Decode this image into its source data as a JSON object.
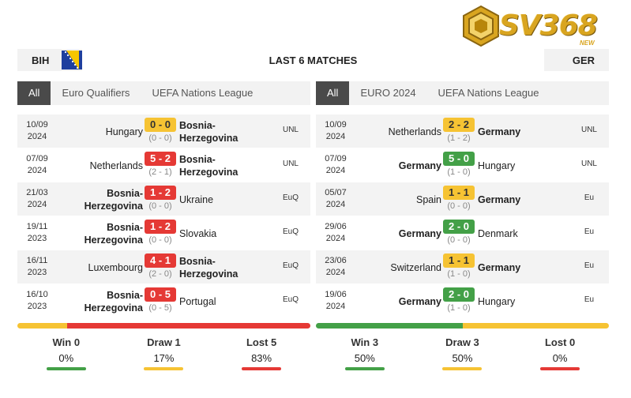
{
  "logo": {
    "text": "SV368",
    "sub": "NEW"
  },
  "header": {
    "left_team": "BIH",
    "right_team": "GER",
    "title": "LAST 6 MATCHES"
  },
  "left": {
    "tabs": [
      "All",
      "Euro Qualifiers",
      "UEFA Nations League"
    ],
    "matches": [
      {
        "date1": "10/09",
        "date2": "2024",
        "home": "Hungary",
        "away": "Bosnia-Herzegovina",
        "score": "0 - 0",
        "ht": "(0 - 0)",
        "comp": "UNL",
        "result": "draw",
        "bold": "away"
      },
      {
        "date1": "07/09",
        "date2": "2024",
        "home": "Netherlands",
        "away": "Bosnia-Herzegovina",
        "score": "5 - 2",
        "ht": "(2 - 1)",
        "comp": "UNL",
        "result": "loss",
        "bold": "away"
      },
      {
        "date1": "21/03",
        "date2": "2024",
        "home": "Bosnia-Herzegovina",
        "away": "Ukraine",
        "score": "1 - 2",
        "ht": "(0 - 0)",
        "comp": "EuQ",
        "result": "loss",
        "bold": "home"
      },
      {
        "date1": "19/11",
        "date2": "2023",
        "home": "Bosnia-Herzegovina",
        "away": "Slovakia",
        "score": "1 - 2",
        "ht": "(0 - 0)",
        "comp": "EuQ",
        "result": "loss",
        "bold": "home"
      },
      {
        "date1": "16/11",
        "date2": "2023",
        "home": "Luxembourg",
        "away": "Bosnia-Herzegovina",
        "score": "4 - 1",
        "ht": "(2 - 0)",
        "comp": "EuQ",
        "result": "loss",
        "bold": "away"
      },
      {
        "date1": "16/10",
        "date2": "2023",
        "home": "Bosnia-Herzegovina",
        "away": "Portugal",
        "score": "0 - 5",
        "ht": "(0 - 5)",
        "comp": "EuQ",
        "result": "loss",
        "bold": "home"
      }
    ],
    "stats": [
      {
        "label": "Win 0",
        "value": "0%",
        "color": "#43a047"
      },
      {
        "label": "Draw 1",
        "value": "17%",
        "color": "#f6c333"
      },
      {
        "label": "Lost 5",
        "value": "83%",
        "color": "#e53935"
      }
    ],
    "bar": {
      "win": 0,
      "draw": 0.17,
      "loss": 0.83
    }
  },
  "right": {
    "tabs": [
      "All",
      "EURO 2024",
      "UEFA Nations League"
    ],
    "matches": [
      {
        "date1": "10/09",
        "date2": "2024",
        "home": "Netherlands",
        "away": "Germany",
        "score": "2 - 2",
        "ht": "(1 - 2)",
        "comp": "UNL",
        "result": "draw",
        "bold": "away"
      },
      {
        "date1": "07/09",
        "date2": "2024",
        "home": "Germany",
        "away": "Hungary",
        "score": "5 - 0",
        "ht": "(1 - 0)",
        "comp": "UNL",
        "result": "win",
        "bold": "home"
      },
      {
        "date1": "05/07",
        "date2": "2024",
        "home": "Spain",
        "away": "Germany",
        "score": "1 - 1",
        "ht": "(0 - 0)",
        "comp": "Eu",
        "result": "draw",
        "bold": "away"
      },
      {
        "date1": "29/06",
        "date2": "2024",
        "home": "Germany",
        "away": "Denmark",
        "score": "2 - 0",
        "ht": "(0 - 0)",
        "comp": "Eu",
        "result": "win",
        "bold": "home"
      },
      {
        "date1": "23/06",
        "date2": "2024",
        "home": "Switzerland",
        "away": "Germany",
        "score": "1 - 1",
        "ht": "(1 - 0)",
        "comp": "Eu",
        "result": "draw",
        "bold": "away"
      },
      {
        "date1": "19/06",
        "date2": "2024",
        "home": "Germany",
        "away": "Hungary",
        "score": "2 - 0",
        "ht": "(1 - 0)",
        "comp": "Eu",
        "result": "win",
        "bold": "home"
      }
    ],
    "stats": [
      {
        "label": "Win 3",
        "value": "50%",
        "color": "#43a047"
      },
      {
        "label": "Draw 3",
        "value": "50%",
        "color": "#f6c333"
      },
      {
        "label": "Lost 0",
        "value": "0%",
        "color": "#e53935"
      }
    ],
    "bar": {
      "win": 0.5,
      "draw": 0.5,
      "loss": 0
    }
  }
}
